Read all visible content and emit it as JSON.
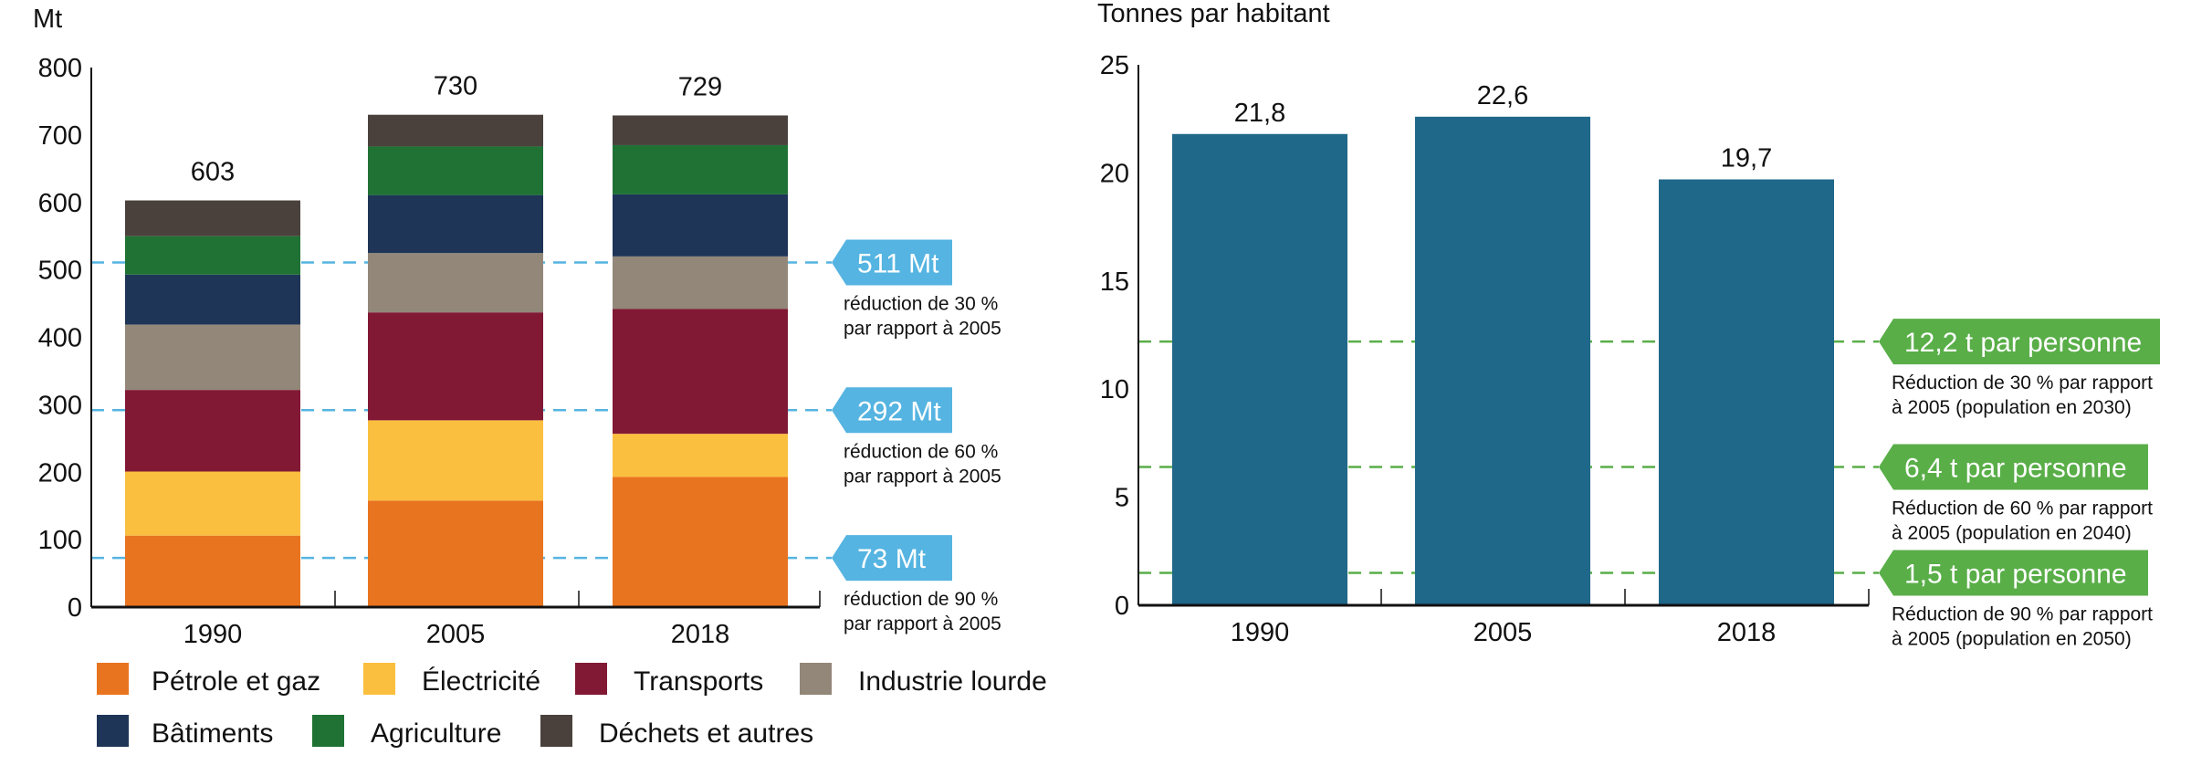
{
  "chart_data": [
    {
      "type": "bar",
      "stacked": true,
      "ylabel": "Mt",
      "ylim": [
        0,
        800
      ],
      "yticks": [
        0,
        100,
        200,
        300,
        400,
        500,
        600,
        700,
        800
      ],
      "categories": [
        "1990",
        "2005",
        "2018"
      ],
      "totals": [
        "603",
        "730",
        "729"
      ],
      "series": [
        {
          "name": "Pétrole et gaz",
          "color": "#E9741F",
          "values": [
            106,
            158,
            193
          ]
        },
        {
          "name": "Électricité",
          "color": "#FBBF3F",
          "values": [
            95,
            119,
            64
          ]
        },
        {
          "name": "Transports",
          "color": "#821934",
          "values": [
            121,
            160,
            185
          ]
        },
        {
          "name": "Industrie lourde",
          "color": "#928779",
          "values": [
            97,
            88,
            78
          ]
        },
        {
          "name": "Bâtiments",
          "color": "#1E3557",
          "values": [
            74,
            86,
            92
          ]
        },
        {
          "name": "Agriculture",
          "color": "#1F7234",
          "values": [
            57,
            72,
            73
          ]
        },
        {
          "name": "Déchets et autres",
          "color": "#4A413C",
          "values": [
            53,
            47,
            44
          ]
        }
      ],
      "targets": [
        {
          "value": 511,
          "label": "511 Mt",
          "note": [
            "réduction de 30 %",
            "par rapport à 2005"
          ]
        },
        {
          "value": 292,
          "label": "292 Mt",
          "note": [
            "réduction de 60 %",
            "par rapport à 2005"
          ]
        },
        {
          "value": 73,
          "label": "73 Mt",
          "note": [
            "réduction de 90 %",
            "par rapport à 2005"
          ]
        }
      ],
      "target_color": "#55B4E1",
      "legend_placement": "bottom"
    },
    {
      "type": "bar",
      "ylabel": "Tonnes par habitant",
      "ylim": [
        0,
        25
      ],
      "yticks": [
        0,
        5,
        10,
        15,
        20,
        25
      ],
      "categories": [
        "1990",
        "2005",
        "2018"
      ],
      "values": [
        21.8,
        22.6,
        19.7
      ],
      "value_labels": [
        "21,8",
        "22,6",
        "19,7"
      ],
      "color": "#1F6889",
      "targets": [
        {
          "value": 12.2,
          "label": "12,2 t par personne",
          "note": [
            "Réduction de 30 % par rapport",
            "à 2005 (population en 2030)"
          ]
        },
        {
          "value": 6.4,
          "label": "6,4 t par personne",
          "note": [
            "Réduction de 60 % par rapport",
            "à 2005 (population en 2040)"
          ]
        },
        {
          "value": 1.5,
          "label": "1,5 t par personne",
          "note": [
            "Réduction de 90 % par rapport",
            "à 2005 (population en 2050)"
          ]
        }
      ],
      "target_color": "#59AE48"
    }
  ]
}
